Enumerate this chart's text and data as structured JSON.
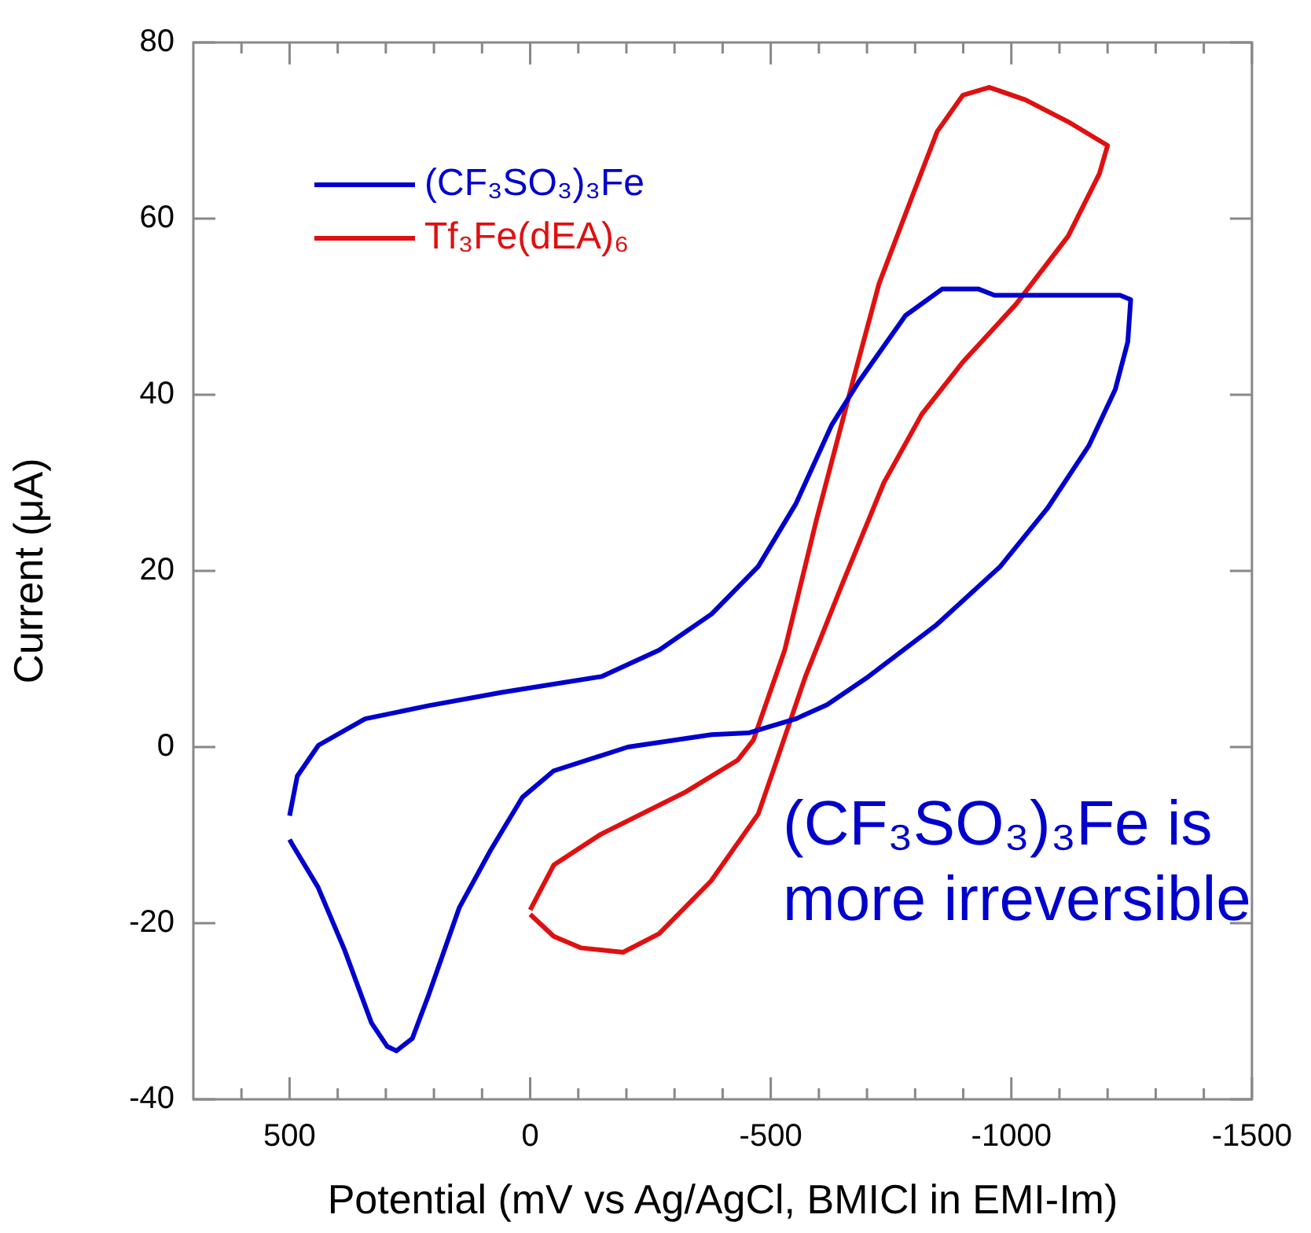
{
  "chart_data": {
    "type": "line",
    "xlabel": "Potential (mV vs Ag/AgCl, BMICl in EMI-Im)",
    "ylabel": "Current (μA)",
    "xlim": [
      700,
      -1500
    ],
    "ylim": [
      -40,
      80
    ],
    "xticks": [
      {
        "value": 600,
        "label": null
      },
      500,
      {
        "value": 400,
        "label": null
      },
      {
        "value": 300,
        "label": null
      },
      {
        "value": 200,
        "label": null
      },
      {
        "value": 100,
        "label": null
      },
      0,
      {
        "value": -100,
        "label": null
      },
      {
        "value": -200,
        "label": null
      },
      {
        "value": -300,
        "label": null
      },
      {
        "value": -400,
        "label": null
      },
      -500,
      {
        "value": -600,
        "label": null
      },
      {
        "value": -700,
        "label": null
      },
      {
        "value": -800,
        "label": null
      },
      {
        "value": -900,
        "label": null
      },
      -1000,
      {
        "value": -1100,
        "label": null
      },
      {
        "value": -1200,
        "label": null
      },
      {
        "value": -1300,
        "label": null
      },
      {
        "value": -1400,
        "label": null
      },
      -1500
    ],
    "yticks": [
      -40,
      -20,
      0,
      20,
      40,
      60,
      80
    ],
    "grid": false,
    "legend": "top left",
    "marker": "none",
    "line_style": "solid",
    "annotations": [
      "(CF₃SO₃)₃Fe is more irreversible"
    ],
    "series": [
      {
        "name": "(CF₃SO₃)₃Fe",
        "color": "#0000cc",
        "x": [
          500,
          484,
          440,
          343,
          211,
          59,
          -148,
          -268,
          -377,
          -474,
          -552,
          -627,
          -682,
          -780,
          -856,
          -932,
          -965,
          -1226,
          -1248,
          -1242,
          -1216,
          -1161,
          -1075,
          -977,
          -845,
          -703,
          -617,
          -552,
          -497,
          -454,
          -377,
          -203,
          -49,
          16,
          82,
          147,
          212,
          245,
          278,
          297,
          330,
          386,
          441,
          494,
          500
        ],
        "values": [
          -7.8,
          -3.3,
          0.2,
          3.2,
          4.7,
          6.2,
          8,
          11,
          15.1,
          20.5,
          27.6,
          36.6,
          41.4,
          49,
          52,
          52,
          51.3,
          51.3,
          50.8,
          46,
          40.6,
          34.2,
          27.1,
          20.5,
          13.9,
          8,
          4.8,
          3.2,
          2.3,
          1.6,
          1.4,
          0,
          -2.7,
          -5.7,
          -11.7,
          -18.2,
          -28.3,
          -33.1,
          -34.5,
          -34,
          -31.3,
          -23,
          -15.9,
          -11.1,
          -10.5
        ]
      },
      {
        "name": "Tf₃Fe(dEA)₆",
        "color": "#e01010",
        "x": [
          0,
          -49,
          -147,
          -323,
          -431,
          -464,
          -529,
          -595,
          -670,
          -725,
          -791,
          -846,
          -899,
          -954,
          -1029,
          -1118,
          -1200,
          -1183,
          -1118,
          -1010,
          -899,
          -814,
          -735,
          -650,
          -572,
          -507,
          -474,
          -376,
          -268,
          -193,
          -105,
          -49,
          0
        ],
        "values": [
          -18.5,
          -13.4,
          -9.9,
          -5.1,
          -1.5,
          0.8,
          11,
          25.8,
          41.4,
          52.6,
          62.1,
          69.9,
          74,
          74.9,
          73.5,
          71,
          68.3,
          65.1,
          58,
          50.3,
          43.7,
          37.8,
          30,
          18.7,
          8,
          -2.4,
          -7.6,
          -15.2,
          -21.2,
          -23.3,
          -22.8,
          -21.5,
          -19
        ]
      }
    ]
  }
}
